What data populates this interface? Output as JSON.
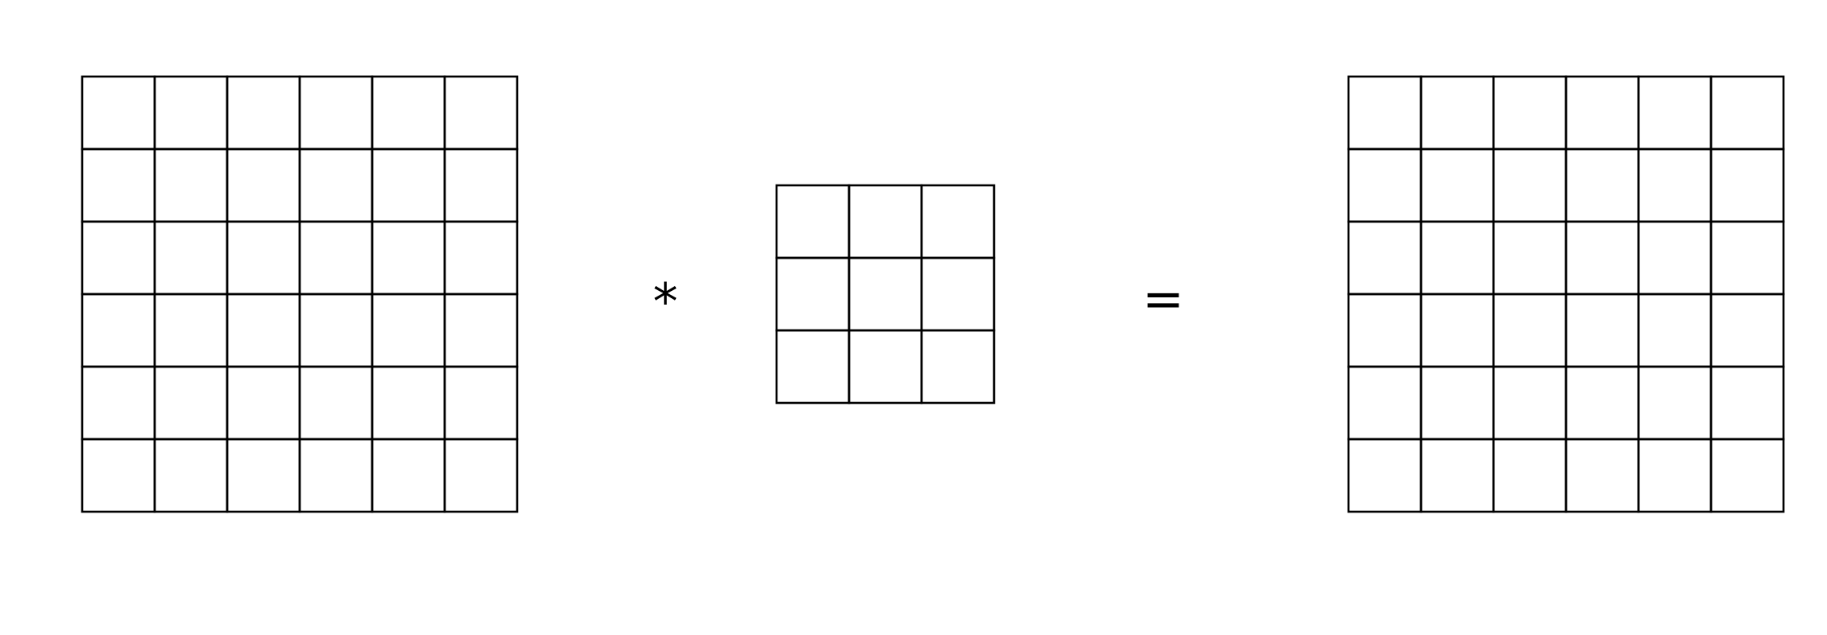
{
  "diagram": {
    "input_grid": {
      "rows": 6,
      "cols": 6
    },
    "kernel_grid": {
      "rows": 3,
      "cols": 3
    },
    "output_grid": {
      "rows": 6,
      "cols": 6
    },
    "operator_convolve": "*",
    "operator_equals": "="
  },
  "colors": {
    "line": "#000000",
    "background": "#ffffff"
  }
}
